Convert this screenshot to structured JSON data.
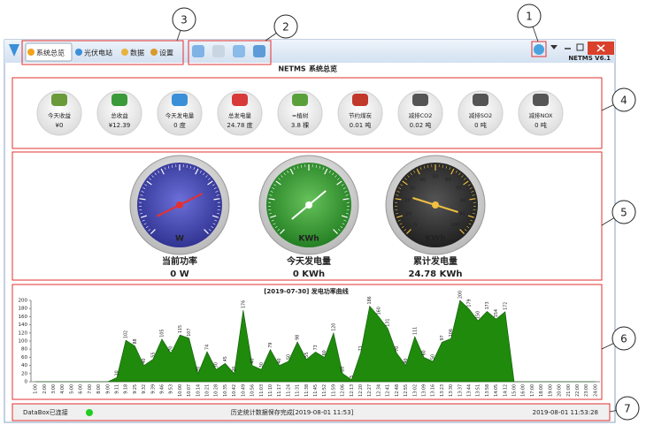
{
  "annotations": [
    "1",
    "2",
    "3",
    "4",
    "5",
    "6",
    "7"
  ],
  "window": {
    "tabs": [
      "系统总览",
      "光伏电站",
      "数据",
      "设置"
    ],
    "version": "NETMS V6.1"
  },
  "header": {
    "app": "NETMS",
    "title": "系统总览"
  },
  "stats": [
    {
      "label": "今天收益",
      "value": "¥0"
    },
    {
      "label": "总收益",
      "value": "¥12.39"
    },
    {
      "label": "今天发电量",
      "value": "0 度"
    },
    {
      "label": "总发电量",
      "value": "24.78 度"
    },
    {
      "label": "≈植树",
      "value": "3.8 棵"
    },
    {
      "label": "节约煤炭",
      "value": "0.01 吨"
    },
    {
      "label": "减排CO2",
      "value": "0.02 吨"
    },
    {
      "label": "减排SO2",
      "value": "0 吨"
    },
    {
      "label": "减排NOX",
      "value": "0 吨"
    }
  ],
  "gauges": [
    {
      "unit": "W",
      "label": "当前功率",
      "value": "0 W"
    },
    {
      "unit": "KWh",
      "label": "今天发电量",
      "value": "0 KWh"
    },
    {
      "unit": "KWh",
      "label": "累计发电量",
      "value": "24.78 KWh",
      "dial_labels": [
        0,
        10,
        20,
        30,
        40,
        50,
        60,
        70,
        80,
        90,
        100
      ]
    }
  ],
  "chart_data": {
    "type": "area",
    "title": "[2019-07-30]  发电功率曲线",
    "color": "#1f8a0c",
    "categories": [
      "1:00",
      "2:00",
      "3:00",
      "4:00",
      "5:00",
      "6:00",
      "7:00",
      "8:00",
      "9:00",
      "9:11",
      "9:18",
      "9:25",
      "9:32",
      "9:39",
      "9:46",
      "9:53",
      "10:00",
      "10:07",
      "10:14",
      "10:21",
      "10:28",
      "10:35",
      "10:42",
      "10:49",
      "10:56",
      "11:03",
      "11:10",
      "11:17",
      "11:24",
      "11:31",
      "11:38",
      "11:45",
      "11:52",
      "11:59",
      "12:06",
      "12:13",
      "12:20",
      "12:27",
      "12:34",
      "12:41",
      "12:48",
      "12:55",
      "13:02",
      "13:09",
      "13:16",
      "13:23",
      "13:30",
      "13:37",
      "13:44",
      "13:51",
      "13:58",
      "14:05",
      "14:12",
      "15:00",
      "16:00",
      "17:00",
      "18:00",
      "19:00",
      "20:00",
      "21:00",
      "22:00",
      "23:00",
      "24:00"
    ],
    "values": [
      0,
      0,
      0,
      0,
      0,
      0,
      0,
      0,
      0,
      10,
      102,
      88,
      40,
      55,
      105,
      70,
      115,
      107,
      20,
      74,
      30,
      45,
      20,
      176,
      40,
      30,
      79,
      40,
      50,
      98,
      55,
      73,
      60,
      120,
      20,
      5,
      71,
      186,
      160,
      131,
      70,
      40,
      111,
      60,
      50,
      97,
      106,
      200,
      179,
      150,
      173,
      154,
      172,
      0,
      0,
      0,
      0,
      0,
      0,
      0,
      0,
      0,
      0
    ],
    "ylim": [
      0,
      200
    ],
    "yticks": [
      0,
      20,
      40,
      60,
      80,
      100,
      120,
      140,
      160,
      180,
      200
    ]
  },
  "status": {
    "connection": "DataBox已连接",
    "message": "历史统计数据保存完成[2019-08-01 11:53]",
    "time": "2019-08-01 11:53:28"
  }
}
